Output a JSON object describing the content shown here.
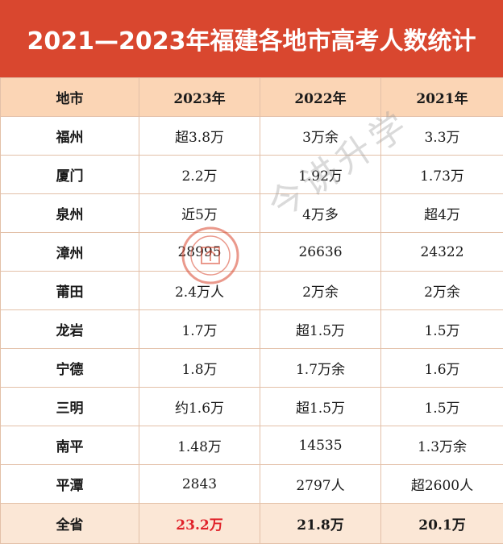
{
  "title": "2021—2023年福建各地市高考人数统计",
  "headers": [
    "地市",
    "2023年",
    "2022年",
    "2021年"
  ],
  "rows": [
    [
      "福州",
      "超3.8万",
      "3万余",
      "3.3万"
    ],
    [
      "厦门",
      "2.2万",
      "1.92万",
      "1.73万"
    ],
    [
      "泉州",
      "近5万",
      "4万多",
      "超4万"
    ],
    [
      "漳州",
      "28995",
      "26636",
      "24322"
    ],
    [
      "莆田",
      "2.4万人",
      "2万余",
      "2万余"
    ],
    [
      "龙岩",
      "1.7万",
      "超1.5万",
      "1.5万"
    ],
    [
      "宁德",
      "1.8万",
      "1.7万余",
      "1.6万"
    ],
    [
      "三明",
      "约1.6万",
      "超1.5万",
      "1.5万"
    ],
    [
      "南平",
      "1.48万",
      "14535",
      "1.3万余"
    ],
    [
      "平潭",
      "2843",
      "2797人",
      "超2600人"
    ]
  ],
  "total": [
    "全省",
    "23.2万",
    "21.8万",
    "20.1万"
  ],
  "watermark": "今讲升学",
  "colors": {
    "title_bg": "#d9472f",
    "header_bg": "#fbd5b5",
    "total_bg": "#fbe7d6",
    "highlight": "#e0222a"
  }
}
